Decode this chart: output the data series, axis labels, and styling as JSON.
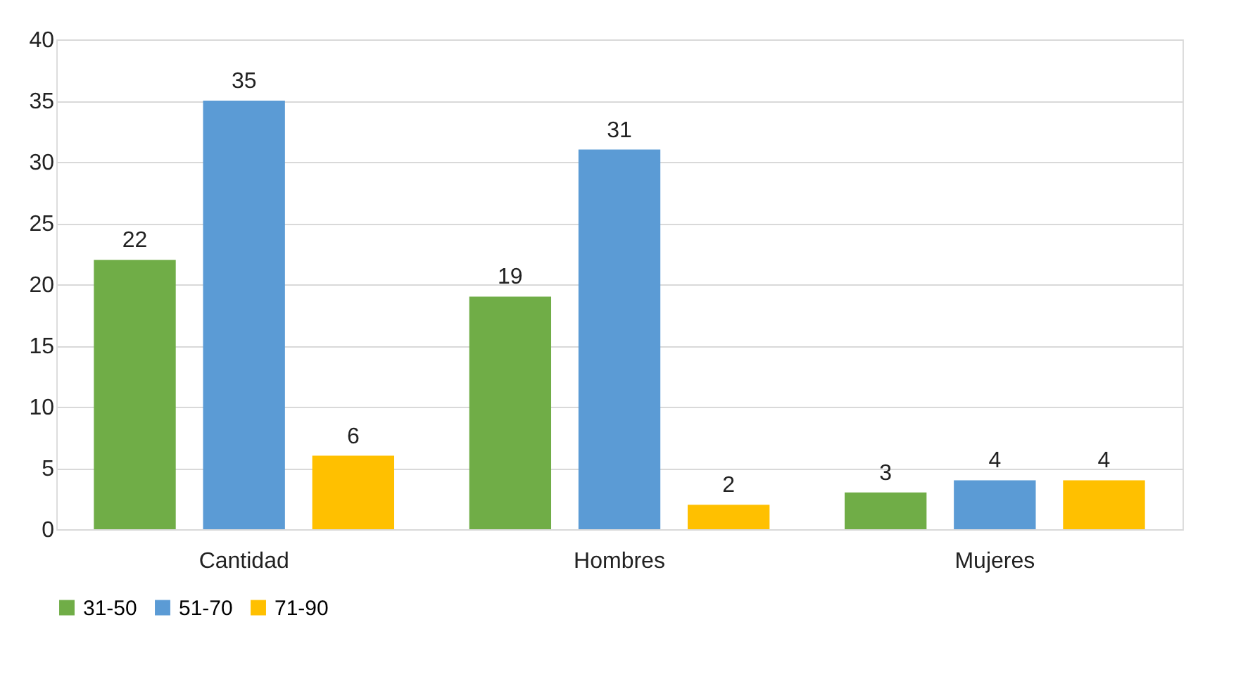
{
  "chart_data": {
    "type": "bar",
    "categories": [
      "Cantidad",
      "Hombres",
      "Mujeres"
    ],
    "series": [
      {
        "name": "31-50",
        "color": "#70ad47",
        "values": [
          22,
          19,
          3
        ]
      },
      {
        "name": "51-70",
        "color": "#5b9bd5",
        "values": [
          35,
          31,
          4
        ]
      },
      {
        "name": "71-90",
        "color": "#ffc000",
        "values": [
          6,
          2,
          4
        ]
      }
    ],
    "ylim": [
      0,
      40
    ],
    "yticks": [
      0,
      5,
      10,
      15,
      20,
      25,
      30,
      35,
      40
    ],
    "grid": "y",
    "legend": "bottom",
    "data_labels": true
  }
}
